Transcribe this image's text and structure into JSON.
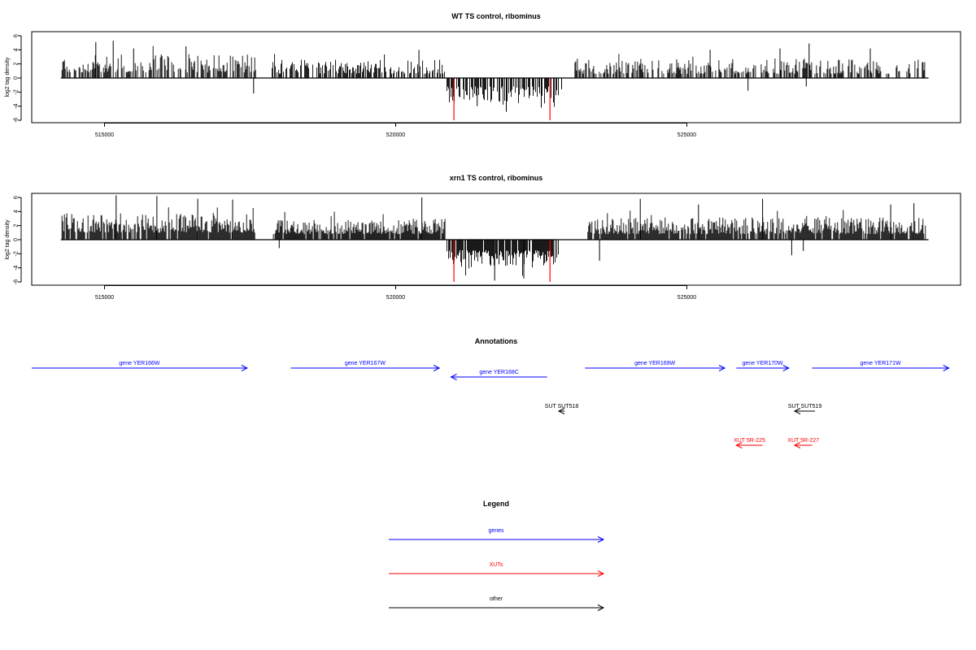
{
  "colors": {
    "gene": "#0000ff",
    "xut": "#ff0000",
    "other": "#000000",
    "bar": "#000000",
    "highlight": "#ff0000"
  },
  "chart_data": [
    {
      "type": "bar",
      "title": "WT TS control, ribominus",
      "ylabel": "log2 tag density",
      "xlim": [
        513750,
        529700
      ],
      "ylim": [
        -6,
        6
      ],
      "xticks": [
        515000,
        520000,
        525000
      ],
      "yticks": [
        -6,
        -4,
        -2,
        0,
        2,
        4,
        6
      ],
      "baseline": [
        514250,
        529150
      ],
      "density": 0.6,
      "seed": 11,
      "series": [
        {
          "segments": [
            {
              "start": 514270,
              "end": 517600,
              "min": 0.8,
              "max": 3.4,
              "sign": 1
            },
            {
              "start": 517850,
              "end": 520850,
              "min": 0.6,
              "max": 2.6,
              "sign": 1
            },
            {
              "start": 520880,
              "end": 522800,
              "min": 1.2,
              "max": 3.6,
              "sign": -1
            },
            {
              "start": 523050,
              "end": 529100,
              "min": 0.6,
              "max": 2.8,
              "sign": 1
            }
          ]
        },
        {
          "spikes": [
            {
              "x": 514850,
              "y": 5.1
            },
            {
              "x": 515150,
              "y": 5.3
            },
            {
              "x": 515500,
              "y": 4.2
            },
            {
              "x": 516400,
              "y": 4.5
            },
            {
              "x": 520400,
              "y": 4.0
            },
            {
              "x": 517560,
              "y": -2.2
            },
            {
              "x": 521900,
              "y": -4.8
            },
            {
              "x": 521400,
              "y": -4.0
            },
            {
              "x": 522500,
              "y": -4.2
            },
            {
              "x": 522850,
              "y": -1.6
            },
            {
              "x": 525400,
              "y": 4.0
            },
            {
              "x": 526050,
              "y": -1.8
            },
            {
              "x": 526600,
              "y": 4.2
            },
            {
              "x": 527100,
              "y": 4.9
            },
            {
              "x": 527050,
              "y": -1.2
            },
            {
              "x": 528150,
              "y": 4.2
            }
          ]
        },
        {
          "highlight": [
            {
              "x": 521000,
              "y": -6.0
            },
            {
              "x": 522650,
              "y": -6.0
            }
          ]
        }
      ]
    },
    {
      "type": "bar",
      "title": "xrn1 TS control, ribominus",
      "ylabel": "log2 tag density",
      "xlim": [
        513750,
        529700
      ],
      "ylim": [
        -6,
        6
      ],
      "xticks": [
        515000,
        520000,
        525000
      ],
      "yticks": [
        -6,
        -4,
        -2,
        0,
        2,
        4,
        6
      ],
      "baseline": [
        514250,
        529150
      ],
      "density": 0.9,
      "seed": 29,
      "series": [
        {
          "segments": [
            {
              "start": 514270,
              "end": 517600,
              "min": 1.0,
              "max": 3.8,
              "sign": 1
            },
            {
              "start": 517900,
              "end": 520850,
              "min": 0.8,
              "max": 3.0,
              "sign": 1
            },
            {
              "start": 520880,
              "end": 522800,
              "min": 1.5,
              "max": 4.0,
              "sign": -1
            },
            {
              "start": 523300,
              "end": 529100,
              "min": 0.8,
              "max": 3.2,
              "sign": 1
            }
          ]
        },
        {
          "spikes": [
            {
              "x": 515200,
              "y": 6.3
            },
            {
              "x": 515900,
              "y": 6.2
            },
            {
              "x": 516600,
              "y": 5.8
            },
            {
              "x": 517200,
              "y": 5.7
            },
            {
              "x": 520450,
              "y": 6.0
            },
            {
              "x": 518000,
              "y": -1.2
            },
            {
              "x": 521700,
              "y": -5.8
            },
            {
              "x": 522200,
              "y": -5.5
            },
            {
              "x": 523500,
              "y": -3.0
            },
            {
              "x": 524200,
              "y": 5.8
            },
            {
              "x": 525200,
              "y": 5.0
            },
            {
              "x": 526300,
              "y": 5.8
            },
            {
              "x": 526800,
              "y": -2.2
            },
            {
              "x": 527000,
              "y": -1.6
            },
            {
              "x": 528500,
              "y": 5.0
            },
            {
              "x": 528900,
              "y": 5.2
            }
          ]
        },
        {
          "highlight": [
            {
              "x": 521000,
              "y": -6.0
            },
            {
              "x": 522650,
              "y": -6.0
            }
          ]
        }
      ]
    }
  ],
  "annotations": {
    "title": "Annotations",
    "features": [
      {
        "label": "gene YER166W",
        "start": 513750,
        "end": 517450,
        "strand": "+",
        "type": "gene"
      },
      {
        "label": "gene YER167W",
        "start": 518200,
        "end": 520750,
        "strand": "+",
        "type": "gene"
      },
      {
        "label": "gene YER168C",
        "start": 520950,
        "end": 522600,
        "strand": "-",
        "type": "gene"
      },
      {
        "label": "gene YER169W",
        "start": 523250,
        "end": 525650,
        "strand": "+",
        "type": "gene"
      },
      {
        "label": "gene YER170W",
        "start": 525850,
        "end": 526750,
        "strand": "+",
        "type": "gene"
      },
      {
        "label": "gene YER171W",
        "start": 527150,
        "end": 529500,
        "strand": "+",
        "type": "gene"
      },
      {
        "label": "SUT SUT518",
        "start": 522800,
        "end": 522900,
        "strand": "-",
        "type": "other"
      },
      {
        "label": "SUT SUT519",
        "start": 526850,
        "end": 527200,
        "strand": "-",
        "type": "other"
      },
      {
        "label": "XUT 5R-225",
        "start": 525850,
        "end": 526300,
        "strand": "-",
        "type": "xut"
      },
      {
        "label": "XUT 5R-227",
        "start": 526850,
        "end": 527150,
        "strand": "-",
        "type": "xut"
      }
    ]
  },
  "legend": {
    "title": "Legend",
    "items": [
      {
        "label": "genes",
        "type": "gene"
      },
      {
        "label": "XUTs",
        "type": "xut"
      },
      {
        "label": "other",
        "type": "other"
      }
    ]
  }
}
